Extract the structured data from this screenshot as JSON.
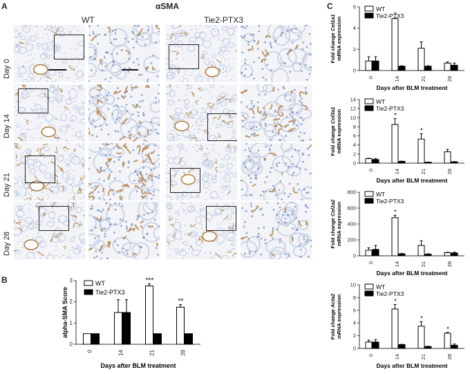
{
  "panel_a": {
    "label": "A",
    "title": "αSMA",
    "col_headers": [
      "WT",
      "Tie2-PTX3"
    ],
    "rows": [
      "Day 0",
      "Day 14",
      "Day 21",
      "Day 28"
    ]
  },
  "panel_b": {
    "label": "B"
  },
  "panel_c": {
    "label": "C"
  },
  "colors": {
    "tissue": "#ccd4e6",
    "nuclei": "#6e86b8",
    "stain": "#b07a3a",
    "wt_bar": "#ffffff",
    "ptx3_bar": "#000000"
  },
  "chart_data": [
    {
      "id": "b",
      "type": "bar",
      "categories": [
        "0",
        "14",
        "21",
        "28"
      ],
      "xlabel": "Days after BLM treatment",
      "ylabel": "alpha-SMA Score",
      "ylim": [
        0,
        3
      ],
      "yticks": [
        0,
        1,
        2,
        3
      ],
      "legend": "top-left",
      "series": [
        {
          "name": "WT",
          "values": [
            0.5,
            1.5,
            2.75,
            1.75
          ],
          "errors": [
            0,
            0.6,
            0.1,
            0.12
          ]
        },
        {
          "name": "Tie2-PTX3",
          "values": [
            0.5,
            1.5,
            0.5,
            0.5
          ],
          "errors": [
            0,
            0.6,
            0,
            0
          ]
        }
      ],
      "annotations": [
        {
          "category": "21",
          "text": "***"
        },
        {
          "category": "28",
          "text": "**"
        }
      ]
    },
    {
      "id": "c1",
      "type": "bar",
      "categories": [
        "0",
        "14",
        "21",
        "28"
      ],
      "xlabel": "Days after BLM treatment",
      "ylabel_prefix": "Fold change ",
      "ylabel_gene": "Col1a1",
      "ylabel_line2": "mRNA expression",
      "ylim": [
        0,
        6
      ],
      "yticks": [
        0,
        2,
        4,
        6
      ],
      "legend": "top-left",
      "series": [
        {
          "name": "WT",
          "values": [
            0.9,
            4.9,
            2.1,
            0.7
          ],
          "errors": [
            0.4,
            0.05,
            0.6,
            0.1
          ]
        },
        {
          "name": "Tie2-PTX3",
          "values": [
            0.9,
            0.4,
            0.4,
            0.5
          ],
          "errors": [
            0.4,
            0.05,
            0.05,
            0.2
          ]
        }
      ],
      "annotations": [
        {
          "category": "14",
          "text": "*"
        }
      ]
    },
    {
      "id": "c2",
      "type": "bar",
      "categories": [
        "0",
        "14",
        "21",
        "28"
      ],
      "xlabel": "Days after BLM treatment",
      "ylabel_prefix": "Fold change ",
      "ylabel_gene": "Col3a1",
      "ylabel_line2": "mRNA expression",
      "ylim": [
        0,
        14
      ],
      "yticks": [
        0,
        2,
        4,
        6,
        8,
        10,
        12,
        14
      ],
      "legend": "top-left",
      "series": [
        {
          "name": "WT",
          "values": [
            1.0,
            8.5,
            5.3,
            2.5
          ],
          "errors": [
            0.1,
            1.3,
            1.2,
            0.5
          ]
        },
        {
          "name": "Tie2-PTX3",
          "values": [
            0.8,
            0.4,
            0.2,
            0.3
          ],
          "errors": [
            0.2,
            0.05,
            0.05,
            0.05
          ]
        }
      ],
      "annotations": [
        {
          "category": "14",
          "text": "*"
        },
        {
          "category": "21",
          "text": "*"
        }
      ]
    },
    {
      "id": "c3",
      "type": "bar",
      "categories": [
        "0",
        "14",
        "21",
        "28"
      ],
      "xlabel": "Days after BLM treatment",
      "ylabel_prefix": "Fold change ",
      "ylabel_gene": "Col1a2",
      "ylabel_line2": "mRNA expression",
      "ylim": [
        0,
        800
      ],
      "yticks": [
        0,
        200,
        400,
        600,
        800
      ],
      "legend": "top-left",
      "series": [
        {
          "name": "WT",
          "values": [
            70,
            480,
            130,
            40
          ],
          "errors": [
            30,
            30,
            60,
            5
          ]
        },
        {
          "name": "Tie2-PTX3",
          "values": [
            80,
            25,
            20,
            35
          ],
          "errors": [
            50,
            5,
            5,
            10
          ]
        }
      ],
      "annotations": [
        {
          "category": "14",
          "text": "*"
        }
      ]
    },
    {
      "id": "c4",
      "type": "bar",
      "categories": [
        "0",
        "14",
        "21",
        "28"
      ],
      "xlabel": "Days after BLM treatment",
      "ylabel_prefix": "Fold change ",
      "ylabel_gene": "Acta2",
      "ylabel_line2": "mRNA expression",
      "ylim": [
        0,
        10
      ],
      "yticks": [
        0,
        2,
        4,
        6,
        8,
        10
      ],
      "legend": "top-left",
      "series": [
        {
          "name": "WT",
          "values": [
            1.0,
            6.2,
            3.5,
            2.4
          ],
          "errors": [
            0.3,
            0.7,
            0.7,
            0.1
          ]
        },
        {
          "name": "Tie2-PTX3",
          "values": [
            1.0,
            0.6,
            0.3,
            0.5
          ],
          "errors": [
            0.4,
            0.05,
            0.05,
            0.2
          ]
        }
      ],
      "annotations": [
        {
          "category": "14",
          "text": "*"
        },
        {
          "category": "21",
          "text": "*"
        },
        {
          "category": "28",
          "text": "*"
        }
      ]
    }
  ]
}
